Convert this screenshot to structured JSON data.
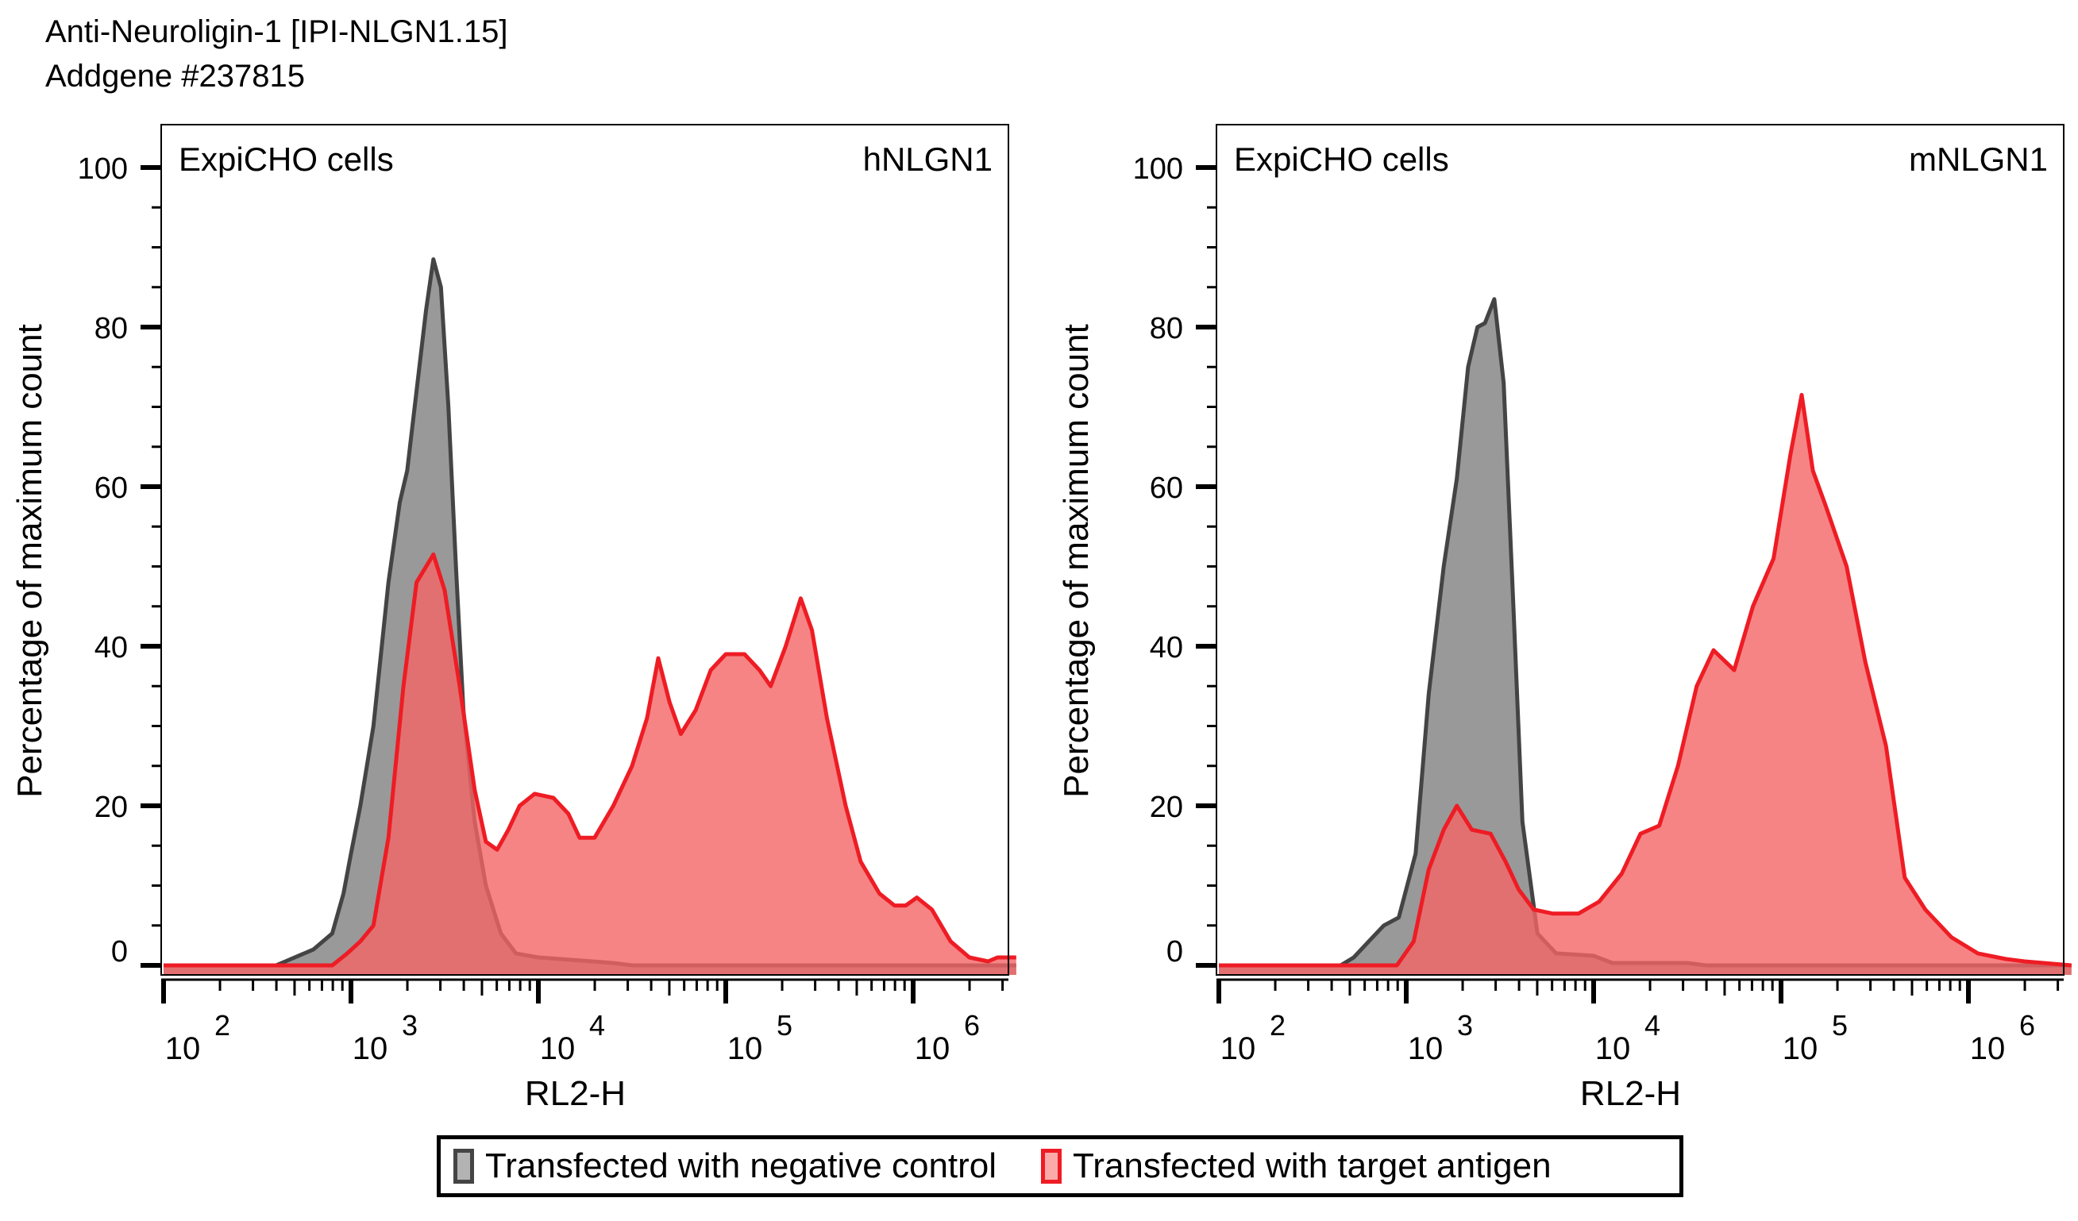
{
  "header": {
    "title_line1": "Anti-Neuroligin-1 [IPI-NLGN1.15]",
    "title_line2": "Addgene #237815"
  },
  "legend": {
    "items": [
      {
        "label": "Transfected with negative control",
        "fill": "#999999",
        "stroke": "#444444"
      },
      {
        "label": "Transfected with target antigen",
        "fill": "#f98a8c",
        "stroke": "#ee1c24"
      }
    ]
  },
  "colors": {
    "control_fill": "#808080",
    "control_stroke": "#444444",
    "antigen_fill": "#f46567",
    "antigen_stroke": "#ee1c24"
  },
  "chart_data": [
    {
      "type": "area",
      "title": "hNLGN1",
      "annotation": "ExpiCHO cells",
      "xlabel": "RL2-H",
      "ylabel": "Percentage of maximum count",
      "xscale": "log",
      "xlim_log10": [
        2.0,
        6.55
      ],
      "ylim": [
        -2,
        105
      ],
      "x_ticks": [
        {
          "label_base": "10",
          "exp": "2",
          "log": 2
        },
        {
          "label_base": "10",
          "exp": "3",
          "log": 3
        },
        {
          "label_base": "10",
          "exp": "4",
          "log": 4
        },
        {
          "label_base": "10",
          "exp": "5",
          "log": 5
        },
        {
          "label_base": "10",
          "exp": "6",
          "log": 6
        }
      ],
      "y_ticks": [
        0,
        20,
        40,
        60,
        80,
        100
      ],
      "series": [
        {
          "name": "Transfected with negative control",
          "points_log10x_pct": [
            [
              2.0,
              0
            ],
            [
              2.6,
              0
            ],
            [
              2.65,
              0.5
            ],
            [
              2.8,
              2
            ],
            [
              2.9,
              4
            ],
            [
              2.96,
              9
            ],
            [
              3.0,
              14
            ],
            [
              3.05,
              20
            ],
            [
              3.12,
              30
            ],
            [
              3.2,
              48
            ],
            [
              3.26,
              58
            ],
            [
              3.3,
              62
            ],
            [
              3.35,
              72
            ],
            [
              3.4,
              82
            ],
            [
              3.44,
              88.5
            ],
            [
              3.48,
              85
            ],
            [
              3.52,
              70
            ],
            [
              3.56,
              50
            ],
            [
              3.6,
              32
            ],
            [
              3.66,
              18
            ],
            [
              3.72,
              10
            ],
            [
              3.8,
              4
            ],
            [
              3.88,
              1.5
            ],
            [
              4.0,
              1
            ],
            [
              4.4,
              0.3
            ],
            [
              4.5,
              0
            ],
            [
              6.55,
              0
            ]
          ]
        },
        {
          "name": "Transfected with target antigen",
          "points_log10x_pct": [
            [
              2.0,
              0
            ],
            [
              2.9,
              0
            ],
            [
              2.98,
              1.5
            ],
            [
              3.05,
              3
            ],
            [
              3.12,
              5
            ],
            [
              3.2,
              16
            ],
            [
              3.28,
              35
            ],
            [
              3.35,
              48
            ],
            [
              3.44,
              51.5
            ],
            [
              3.5,
              47
            ],
            [
              3.58,
              35
            ],
            [
              3.66,
              22
            ],
            [
              3.72,
              15.5
            ],
            [
              3.78,
              14.5
            ],
            [
              3.84,
              17
            ],
            [
              3.9,
              20
            ],
            [
              3.98,
              21.5
            ],
            [
              4.08,
              21
            ],
            [
              4.16,
              19
            ],
            [
              4.22,
              16
            ],
            [
              4.3,
              16
            ],
            [
              4.4,
              20
            ],
            [
              4.5,
              25
            ],
            [
              4.58,
              31
            ],
            [
              4.64,
              38.5
            ],
            [
              4.7,
              33
            ],
            [
              4.76,
              29
            ],
            [
              4.84,
              32
            ],
            [
              4.92,
              37
            ],
            [
              5.0,
              39
            ],
            [
              5.1,
              39
            ],
            [
              5.18,
              37
            ],
            [
              5.24,
              35
            ],
            [
              5.32,
              40
            ],
            [
              5.4,
              46
            ],
            [
              5.46,
              42
            ],
            [
              5.54,
              31
            ],
            [
              5.64,
              20
            ],
            [
              5.72,
              13
            ],
            [
              5.82,
              9
            ],
            [
              5.9,
              7.5
            ],
            [
              5.96,
              7.5
            ],
            [
              6.02,
              8.5
            ],
            [
              6.1,
              7
            ],
            [
              6.2,
              3
            ],
            [
              6.3,
              1
            ],
            [
              6.4,
              0.5
            ],
            [
              6.45,
              1
            ],
            [
              6.55,
              1
            ]
          ]
        }
      ]
    },
    {
      "type": "area",
      "title": "mNLGN1",
      "annotation": "ExpiCHO cells",
      "xlabel": "RL2-H",
      "ylabel": "Percentage of maximum count",
      "xscale": "log",
      "xlim_log10": [
        2.0,
        6.55
      ],
      "ylim": [
        -2,
        105
      ],
      "x_ticks": [
        {
          "label_base": "10",
          "exp": "2",
          "log": 2
        },
        {
          "label_base": "10",
          "exp": "3",
          "log": 3
        },
        {
          "label_base": "10",
          "exp": "4",
          "log": 4
        },
        {
          "label_base": "10",
          "exp": "5",
          "log": 5
        },
        {
          "label_base": "10",
          "exp": "6",
          "log": 6
        }
      ],
      "y_ticks": [
        0,
        20,
        40,
        60,
        80,
        100
      ],
      "series": [
        {
          "name": "Transfected with negative control",
          "points_log10x_pct": [
            [
              2.0,
              0
            ],
            [
              2.65,
              0
            ],
            [
              2.72,
              1
            ],
            [
              2.8,
              3
            ],
            [
              2.88,
              5
            ],
            [
              2.96,
              6
            ],
            [
              3.05,
              14
            ],
            [
              3.12,
              34
            ],
            [
              3.2,
              50
            ],
            [
              3.27,
              61
            ],
            [
              3.33,
              75
            ],
            [
              3.38,
              80
            ],
            [
              3.42,
              80.5
            ],
            [
              3.47,
              83.5
            ],
            [
              3.52,
              73
            ],
            [
              3.57,
              46
            ],
            [
              3.62,
              18
            ],
            [
              3.7,
              4
            ],
            [
              3.8,
              1.5
            ],
            [
              4.0,
              1.2
            ],
            [
              4.1,
              0.3
            ],
            [
              4.5,
              0.3
            ],
            [
              4.6,
              0
            ],
            [
              6.55,
              0
            ]
          ]
        },
        {
          "name": "Transfected with target antigen",
          "points_log10x_pct": [
            [
              2.0,
              0
            ],
            [
              2.95,
              0
            ],
            [
              3.04,
              3
            ],
            [
              3.12,
              12
            ],
            [
              3.2,
              17
            ],
            [
              3.27,
              20
            ],
            [
              3.35,
              17
            ],
            [
              3.45,
              16.5
            ],
            [
              3.53,
              13
            ],
            [
              3.6,
              9.5
            ],
            [
              3.68,
              7
            ],
            [
              3.78,
              6.5
            ],
            [
              3.92,
              6.5
            ],
            [
              4.03,
              8
            ],
            [
              4.15,
              11.5
            ],
            [
              4.25,
              16.5
            ],
            [
              4.35,
              17.5
            ],
            [
              4.45,
              25
            ],
            [
              4.55,
              35
            ],
            [
              4.64,
              39.5
            ],
            [
              4.75,
              37
            ],
            [
              4.85,
              45
            ],
            [
              4.96,
              51
            ],
            [
              5.05,
              64
            ],
            [
              5.11,
              71.5
            ],
            [
              5.17,
              62
            ],
            [
              5.24,
              57.5
            ],
            [
              5.35,
              50
            ],
            [
              5.45,
              38
            ],
            [
              5.56,
              27.5
            ],
            [
              5.66,
              11
            ],
            [
              5.77,
              7
            ],
            [
              5.91,
              3.5
            ],
            [
              6.05,
              1.5
            ],
            [
              6.2,
              0.8
            ],
            [
              6.3,
              0.5
            ],
            [
              6.55,
              0
            ]
          ]
        }
      ]
    }
  ]
}
